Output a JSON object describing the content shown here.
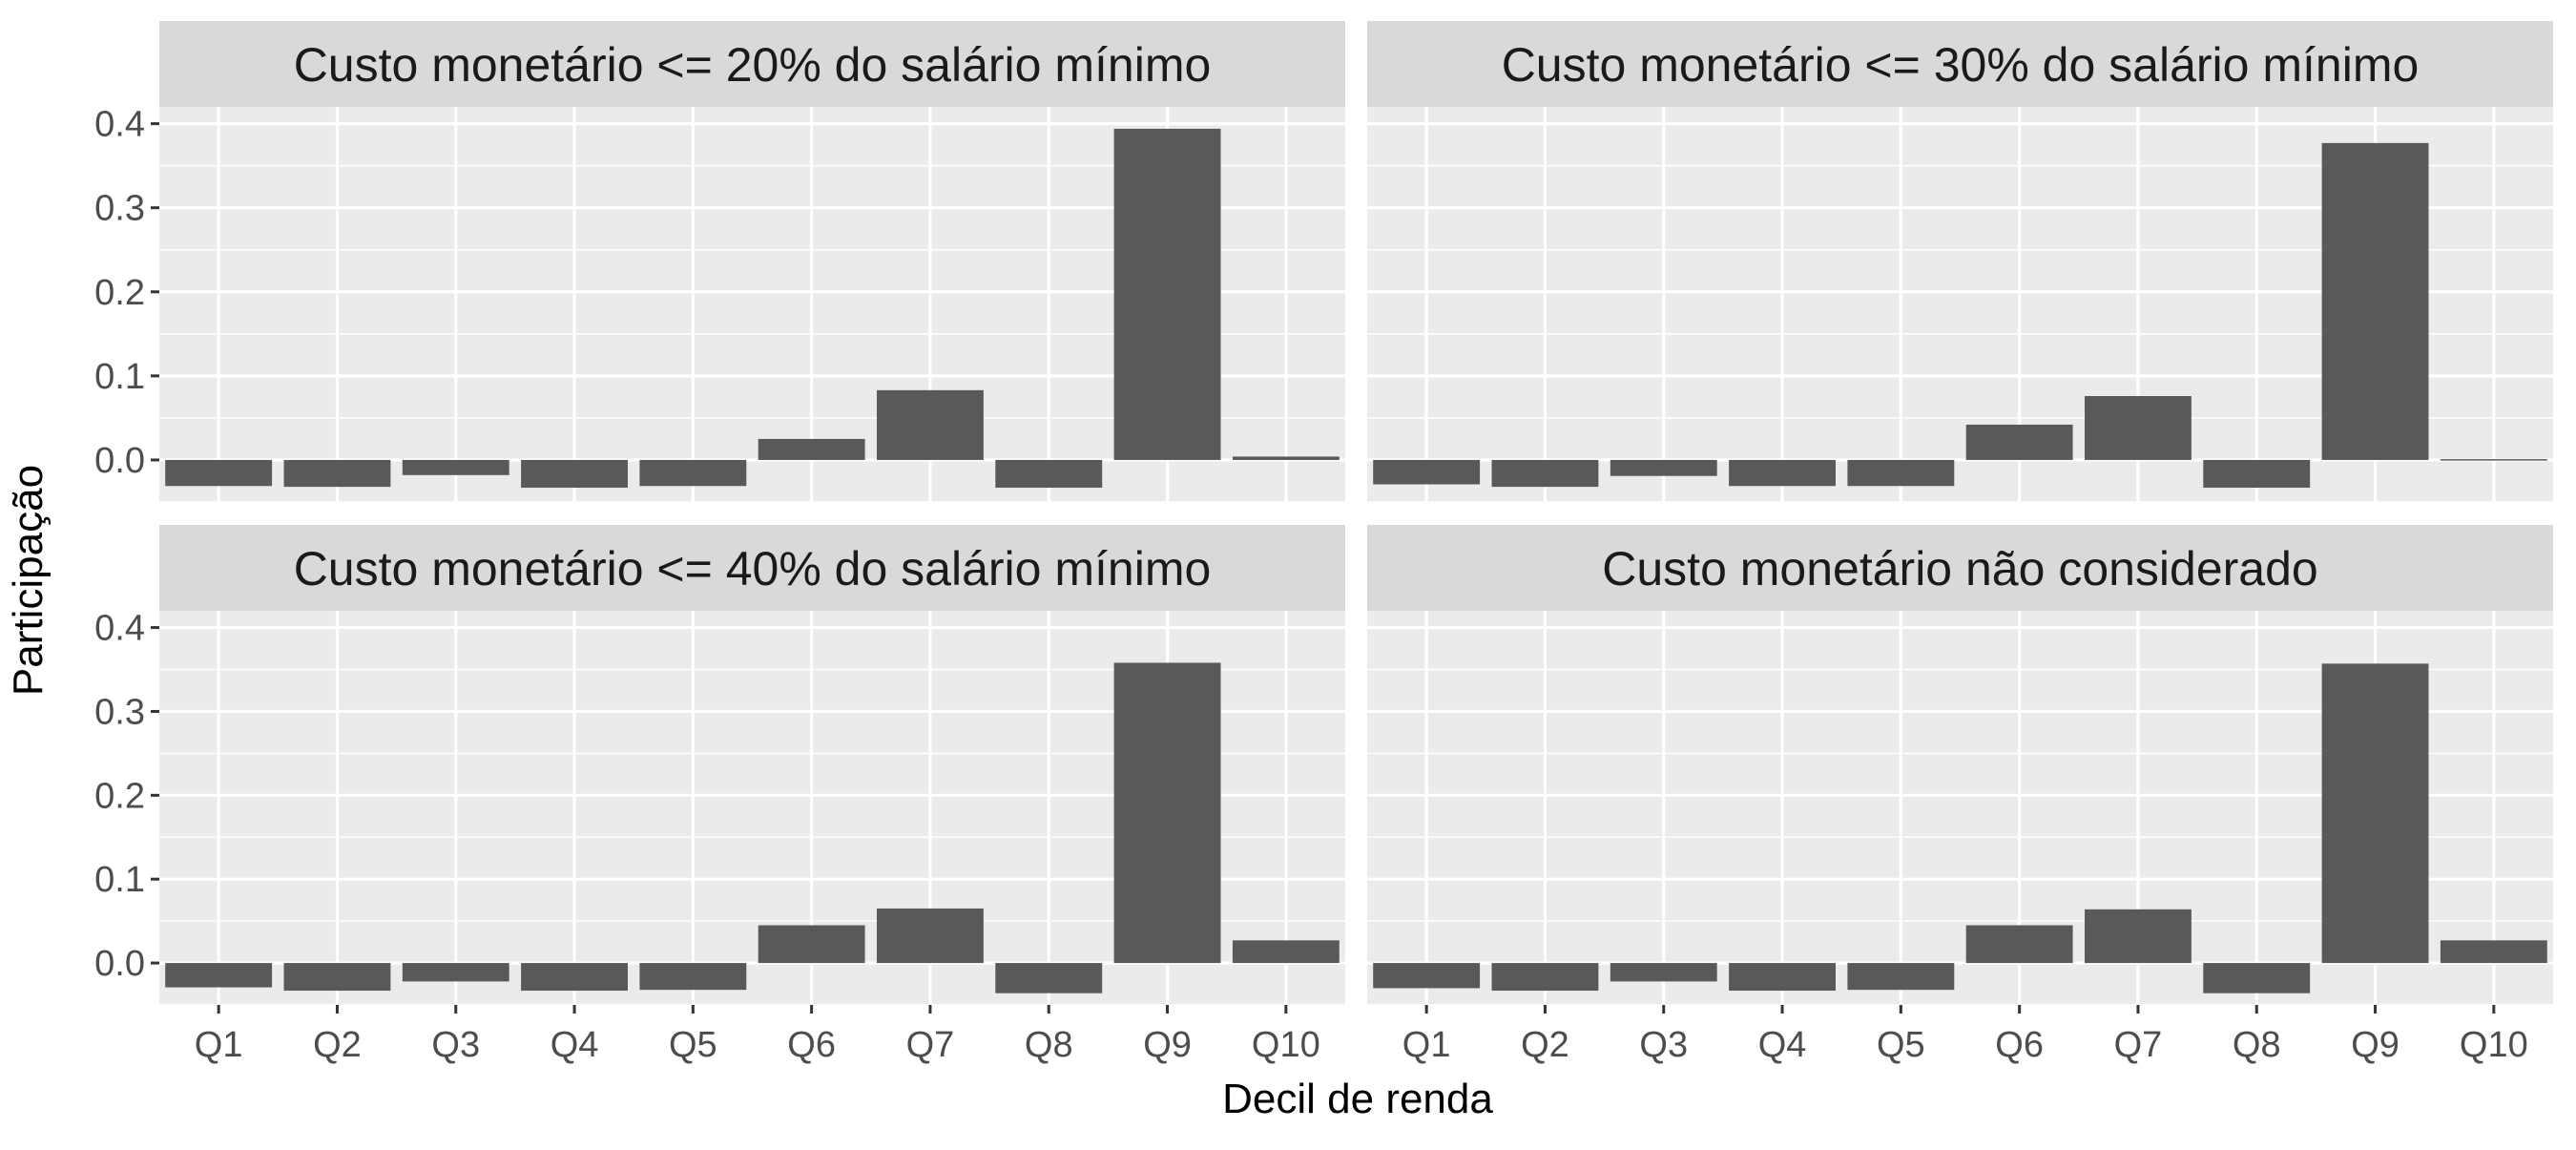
{
  "chart_data": {
    "type": "bar",
    "layout": "facet-grid-2x2",
    "xlabel": "Decil de renda",
    "ylabel": "Participação",
    "categories": [
      "Q1",
      "Q2",
      "Q3",
      "Q4",
      "Q5",
      "Q6",
      "Q7",
      "Q8",
      "Q9",
      "Q10"
    ],
    "ylim": [
      -0.05,
      0.42
    ],
    "yticks": [
      0.0,
      0.1,
      0.2,
      0.3,
      0.4
    ],
    "ytick_labels": [
      "0.0",
      "0.1",
      "0.2",
      "0.3",
      "0.4"
    ],
    "grid": true,
    "legend": "none",
    "colors": {
      "bar": "#595959",
      "panel": "#ebebeb",
      "strip": "#d9d9d9",
      "grid": "#ffffff",
      "text": "#4d4d4d"
    },
    "panels": [
      {
        "title": "Custo monetário <= 20% do salário mínimo",
        "values": [
          -0.031,
          -0.032,
          -0.018,
          -0.033,
          -0.031,
          0.025,
          0.083,
          -0.033,
          0.394,
          0.004
        ]
      },
      {
        "title": "Custo monetário <= 30% do salário mínimo",
        "values": [
          -0.029,
          -0.032,
          -0.019,
          -0.031,
          -0.031,
          0.042,
          0.076,
          -0.033,
          0.377,
          0.001
        ]
      },
      {
        "title": "Custo monetário <= 40% do salário mínimo",
        "values": [
          -0.029,
          -0.033,
          -0.022,
          -0.033,
          -0.032,
          0.045,
          0.065,
          -0.036,
          0.358,
          0.027
        ]
      },
      {
        "title": "Custo monetário não considerado",
        "values": [
          -0.03,
          -0.033,
          -0.022,
          -0.033,
          -0.032,
          0.045,
          0.064,
          -0.036,
          0.357,
          0.027
        ]
      }
    ]
  }
}
